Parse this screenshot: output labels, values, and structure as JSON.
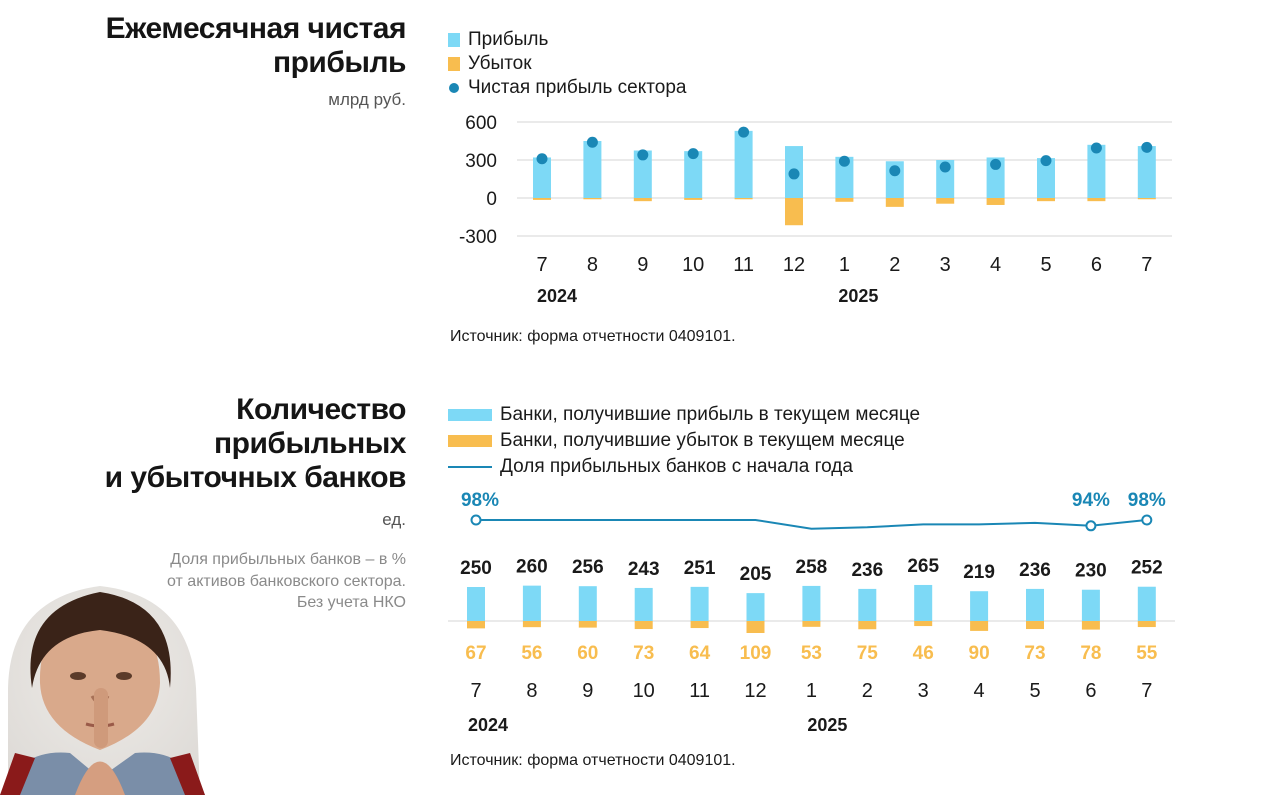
{
  "chart_data": [
    {
      "type": "bar",
      "title": "Ежемесячная чистая прибыль",
      "subtitle": "млрд руб.",
      "categories": [
        "7",
        "8",
        "9",
        "10",
        "11",
        "12",
        "1",
        "2",
        "3",
        "4",
        "5",
        "6",
        "7"
      ],
      "year_labels": [
        {
          "label": "2024",
          "index": 0
        },
        {
          "label": "2025",
          "index": 6
        }
      ],
      "series": [
        {
          "name": "Прибыль",
          "values": [
            320,
            450,
            375,
            370,
            530,
            410,
            325,
            290,
            300,
            320,
            315,
            420,
            410
          ],
          "color": "#7dd9f6"
        },
        {
          "name": "Убыток",
          "values": [
            -15,
            -10,
            -25,
            -15,
            -10,
            -215,
            -30,
            -70,
            -45,
            -55,
            -25,
            -25,
            -10
          ],
          "color": "#f8bd4f"
        },
        {
          "name": "Чистая прибыль сектора",
          "values": [
            310,
            440,
            340,
            350,
            520,
            190,
            290,
            215,
            245,
            265,
            295,
            395,
            400
          ],
          "color": "#1a87b5",
          "style": "dot"
        }
      ],
      "yticks": [
        600,
        300,
        0,
        -300
      ],
      "ylim": [
        -330,
        640
      ],
      "grid": true,
      "legend": "top-left",
      "source": "Источник: форма отчетности 0409101."
    },
    {
      "type": "bar",
      "title": "Количество прибыльных и убыточных банков",
      "subtitle": "ед.",
      "note": [
        "Доля прибыльных банков – в %",
        "от активов банковского сектора.",
        "Без учета НКО"
      ],
      "categories": [
        "7",
        "8",
        "9",
        "10",
        "11",
        "12",
        "1",
        "2",
        "3",
        "4",
        "5",
        "6",
        "7"
      ],
      "year_labels": [
        {
          "label": "2024",
          "index": 0
        },
        {
          "label": "2025",
          "index": 6
        }
      ],
      "series": [
        {
          "name": "Банки, получившие прибыль в текущем месяце",
          "values": [
            250,
            260,
            256,
            243,
            251,
            205,
            258,
            236,
            265,
            219,
            236,
            230,
            252
          ],
          "color": "#7dd9f6"
        },
        {
          "name": "Банки, получившие убыток в текущем месяце",
          "values": [
            67,
            56,
            60,
            73,
            64,
            109,
            53,
            75,
            46,
            90,
            73,
            78,
            55
          ],
          "color": "#f8bd4f"
        },
        {
          "name": "Доля прибыльных банков с начала года",
          "values": [
            98,
            98,
            98,
            98,
            98,
            98,
            92,
            93,
            95,
            95,
            96,
            94,
            98
          ],
          "unit": "%",
          "labeled_points": [
            {
              "index": 0,
              "label": "98%"
            },
            {
              "index": 11,
              "label": "94%"
            },
            {
              "index": 12,
              "label": "98%"
            }
          ],
          "color": "#1a87b5",
          "style": "line"
        }
      ],
      "legend": "top-left",
      "source": "Источник: форма отчетности 0409101."
    }
  ]
}
